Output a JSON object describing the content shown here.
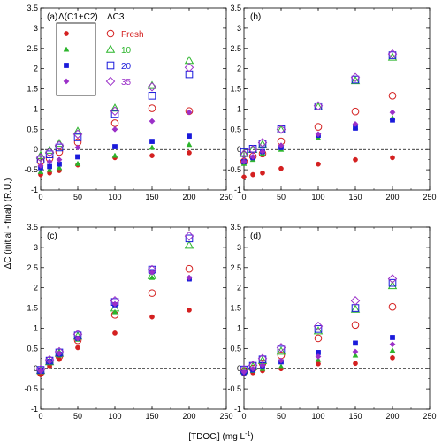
{
  "figure": {
    "ylabel": "ΔC (initial - final) (R.U.)",
    "xlabel": "[TDOC",
    "xlabel_sub": "i",
    "xlabel_units": "] (mg L",
    "xlabel_sup": "-1",
    "xlabel_close": ")"
  },
  "legend": {
    "header_left": "Δ(C1+C2)",
    "header_right": "ΔC3",
    "entries": [
      {
        "label": "Fresh",
        "color": "#d42020",
        "filled_shape": "circle",
        "open_shape": "circle"
      },
      {
        "label": "10",
        "color": "#2cb52c",
        "filled_shape": "triangle",
        "open_shape": "triangle"
      },
      {
        "label": "20",
        "color": "#1a1adb",
        "filled_shape": "square",
        "open_shape": "square"
      },
      {
        "label": "35",
        "color": "#9b30c8",
        "filled_shape": "diamond",
        "open_shape": "diamond"
      }
    ]
  },
  "chart_data": [
    {
      "type": "scatter",
      "panel": "(a)",
      "xlim": [
        0,
        250
      ],
      "ylim": [
        -1,
        3.5
      ],
      "xticks": [
        "0",
        "50",
        "100",
        "150",
        "200",
        "250"
      ],
      "yticks": [
        "-1",
        "-0.5",
        "0",
        "0.5",
        "1",
        "1.5",
        "2",
        "2.5",
        "3",
        "3.5"
      ],
      "zero_line": true,
      "x": [
        0,
        12,
        25,
        50,
        100,
        150,
        200
      ],
      "series": [
        {
          "name": "Fresh",
          "marker": "filled",
          "shape": "circle",
          "color": "#d42020",
          "values": [
            -0.62,
            -0.58,
            -0.52,
            -0.38,
            -0.2,
            -0.15,
            -0.08
          ]
        },
        {
          "name": "Fresh",
          "marker": "open",
          "shape": "circle",
          "color": "#d42020",
          "values": [
            -0.3,
            -0.22,
            -0.06,
            0.18,
            0.65,
            1.02,
            0.95
          ]
        },
        {
          "name": "10",
          "marker": "filled",
          "shape": "triangle",
          "color": "#2cb52c",
          "values": [
            -0.55,
            -0.5,
            -0.45,
            -0.35,
            -0.15,
            0.05,
            0.12
          ]
        },
        {
          "name": "10",
          "marker": "open",
          "shape": "triangle",
          "color": "#2cb52c",
          "values": [
            -0.15,
            -0.02,
            0.15,
            0.45,
            1.02,
            1.58,
            2.2
          ]
        },
        {
          "name": "20",
          "marker": "filled",
          "shape": "square",
          "color": "#1a1adb",
          "values": [
            -0.45,
            -0.42,
            -0.36,
            -0.18,
            0.07,
            0.2,
            0.33
          ]
        },
        {
          "name": "20",
          "marker": "open",
          "shape": "square",
          "color": "#1a1adb",
          "values": [
            -0.25,
            -0.12,
            0.05,
            0.3,
            0.88,
            1.33,
            1.86
          ]
        },
        {
          "name": "35",
          "marker": "filled",
          "shape": "diamond",
          "color": "#9b30c8",
          "values": [
            -0.4,
            -0.3,
            -0.25,
            0.05,
            0.5,
            0.7,
            0.92
          ]
        },
        {
          "name": "35",
          "marker": "open",
          "shape": "diamond",
          "color": "#9b30c8",
          "values": [
            -0.2,
            -0.07,
            0.1,
            0.38,
            0.95,
            1.55,
            2.03
          ]
        }
      ]
    },
    {
      "type": "scatter",
      "panel": "(b)",
      "xlim": [
        0,
        250
      ],
      "ylim": [
        -1,
        3.5
      ],
      "xticks": [
        "0",
        "50",
        "100",
        "150",
        "200",
        "250"
      ],
      "yticks": [
        "-1",
        "-0.5",
        "0",
        "0.5",
        "1",
        "1.5",
        "2",
        "2.5",
        "3",
        "3.5"
      ],
      "zero_line": true,
      "x": [
        0,
        12,
        25,
        50,
        100,
        150,
        200
      ],
      "series": [
        {
          "name": "Fresh",
          "marker": "filled",
          "shape": "circle",
          "color": "#d42020",
          "values": [
            -0.68,
            -0.62,
            -0.58,
            -0.47,
            -0.36,
            -0.25,
            -0.2
          ]
        },
        {
          "name": "Fresh",
          "marker": "open",
          "shape": "circle",
          "color": "#d42020",
          "values": [
            -0.3,
            -0.17,
            -0.1,
            0.2,
            0.56,
            0.94,
            1.33
          ]
        },
        {
          "name": "10",
          "marker": "filled",
          "shape": "triangle",
          "color": "#2cb52c",
          "values": [
            -0.35,
            -0.25,
            -0.1,
            0.0,
            0.28,
            0.55,
            0.78
          ]
        },
        {
          "name": "10",
          "marker": "open",
          "shape": "triangle",
          "color": "#2cb52c",
          "values": [
            -0.1,
            0.0,
            0.12,
            0.48,
            1.05,
            1.7,
            2.28
          ]
        },
        {
          "name": "20",
          "marker": "filled",
          "shape": "square",
          "color": "#1a1adb",
          "values": [
            -0.3,
            -0.2,
            -0.05,
            0.05,
            0.35,
            0.53,
            0.73
          ]
        },
        {
          "name": "20",
          "marker": "open",
          "shape": "square",
          "color": "#1a1adb",
          "values": [
            -0.07,
            0.02,
            0.15,
            0.5,
            1.07,
            1.73,
            2.33
          ]
        },
        {
          "name": "35",
          "marker": "filled",
          "shape": "diamond",
          "color": "#9b30c8",
          "values": [
            -0.3,
            -0.18,
            -0.05,
            0.1,
            0.38,
            0.63,
            0.92
          ]
        },
        {
          "name": "35",
          "marker": "open",
          "shape": "diamond",
          "color": "#9b30c8",
          "values": [
            -0.12,
            0.0,
            0.17,
            0.5,
            1.08,
            1.78,
            2.36
          ]
        }
      ]
    },
    {
      "type": "scatter",
      "panel": "(c)",
      "xlim": [
        0,
        250
      ],
      "ylim": [
        -1,
        3.5
      ],
      "xticks": [
        "0",
        "50",
        "100",
        "150",
        "200",
        "250"
      ],
      "yticks": [
        "-1",
        "-0.5",
        "0",
        "0.5",
        "1",
        "1.5",
        "2",
        "2.5",
        "3",
        "3.5"
      ],
      "zero_line": true,
      "x": [
        0,
        12,
        25,
        50,
        100,
        150,
        200
      ],
      "series": [
        {
          "name": "Fresh",
          "marker": "filled",
          "shape": "circle",
          "color": "#d42020",
          "values": [
            -0.15,
            0.05,
            0.23,
            0.52,
            0.88,
            1.28,
            1.45
          ]
        },
        {
          "name": "Fresh",
          "marker": "open",
          "shape": "circle",
          "color": "#d42020",
          "values": [
            -0.1,
            0.15,
            0.3,
            0.7,
            1.33,
            1.87,
            2.47
          ]
        },
        {
          "name": "10",
          "marker": "filled",
          "shape": "triangle",
          "color": "#2cb52c",
          "values": [
            -0.08,
            0.15,
            0.33,
            0.72,
            1.4,
            2.25,
            2.25
          ]
        },
        {
          "name": "10",
          "marker": "open",
          "shape": "triangle",
          "color": "#2cb52c",
          "values": [
            -0.05,
            0.17,
            0.38,
            0.8,
            1.5,
            2.3,
            3.05
          ]
        },
        {
          "name": "20",
          "marker": "filled",
          "shape": "square",
          "color": "#1a1adb",
          "values": [
            -0.05,
            0.18,
            0.36,
            0.75,
            1.58,
            2.4,
            2.22
          ]
        },
        {
          "name": "20",
          "marker": "open",
          "shape": "square",
          "color": "#1a1adb",
          "values": [
            -0.03,
            0.2,
            0.4,
            0.82,
            1.65,
            2.45,
            3.22
          ]
        },
        {
          "name": "35",
          "marker": "filled",
          "shape": "diamond",
          "color": "#9b30c8",
          "values": [
            -0.05,
            0.18,
            0.38,
            0.75,
            1.6,
            2.38,
            2.25
          ]
        },
        {
          "name": "35",
          "marker": "open",
          "shape": "diamond",
          "color": "#9b30c8",
          "values": [
            -0.02,
            0.22,
            0.42,
            0.85,
            1.68,
            2.45,
            3.28
          ]
        }
      ]
    },
    {
      "type": "scatter",
      "panel": "(d)",
      "xlim": [
        0,
        250
      ],
      "ylim": [
        -1,
        3.5
      ],
      "xticks": [
        "0",
        "50",
        "100",
        "150",
        "200",
        "250"
      ],
      "yticks": [
        "-1",
        "-0.5",
        "0",
        "0.5",
        "1",
        "1.5",
        "2",
        "2.5",
        "3",
        "3.5"
      ],
      "zero_line": true,
      "x": [
        0,
        12,
        25,
        50,
        100,
        150,
        200
      ],
      "series": [
        {
          "name": "Fresh",
          "marker": "filled",
          "shape": "circle",
          "color": "#d42020",
          "values": [
            -0.12,
            -0.1,
            -0.05,
            0.0,
            0.12,
            0.13,
            0.27
          ]
        },
        {
          "name": "Fresh",
          "marker": "open",
          "shape": "circle",
          "color": "#d42020",
          "values": [
            -0.08,
            0.0,
            0.13,
            0.33,
            0.75,
            1.08,
            1.53
          ]
        },
        {
          "name": "10",
          "marker": "filled",
          "shape": "triangle",
          "color": "#2cb52c",
          "values": [
            -0.1,
            -0.05,
            0.0,
            0.05,
            0.22,
            0.33,
            0.45
          ]
        },
        {
          "name": "10",
          "marker": "open",
          "shape": "triangle",
          "color": "#2cb52c",
          "values": [
            -0.05,
            0.05,
            0.2,
            0.43,
            0.93,
            1.47,
            2.05
          ]
        },
        {
          "name": "20",
          "marker": "filled",
          "shape": "square",
          "color": "#1a1adb",
          "values": [
            -0.1,
            -0.03,
            0.05,
            0.17,
            0.4,
            0.63,
            0.77
          ]
        },
        {
          "name": "20",
          "marker": "open",
          "shape": "square",
          "color": "#1a1adb",
          "values": [
            -0.02,
            0.07,
            0.23,
            0.47,
            0.98,
            1.5,
            2.12
          ]
        },
        {
          "name": "35",
          "marker": "filled",
          "shape": "diamond",
          "color": "#9b30c8",
          "values": [
            -0.08,
            0.0,
            0.08,
            0.2,
            0.3,
            0.42,
            0.6
          ]
        },
        {
          "name": "35",
          "marker": "open",
          "shape": "diamond",
          "color": "#9b30c8",
          "values": [
            -0.02,
            0.08,
            0.25,
            0.52,
            1.05,
            1.68,
            2.22
          ]
        }
      ]
    }
  ]
}
